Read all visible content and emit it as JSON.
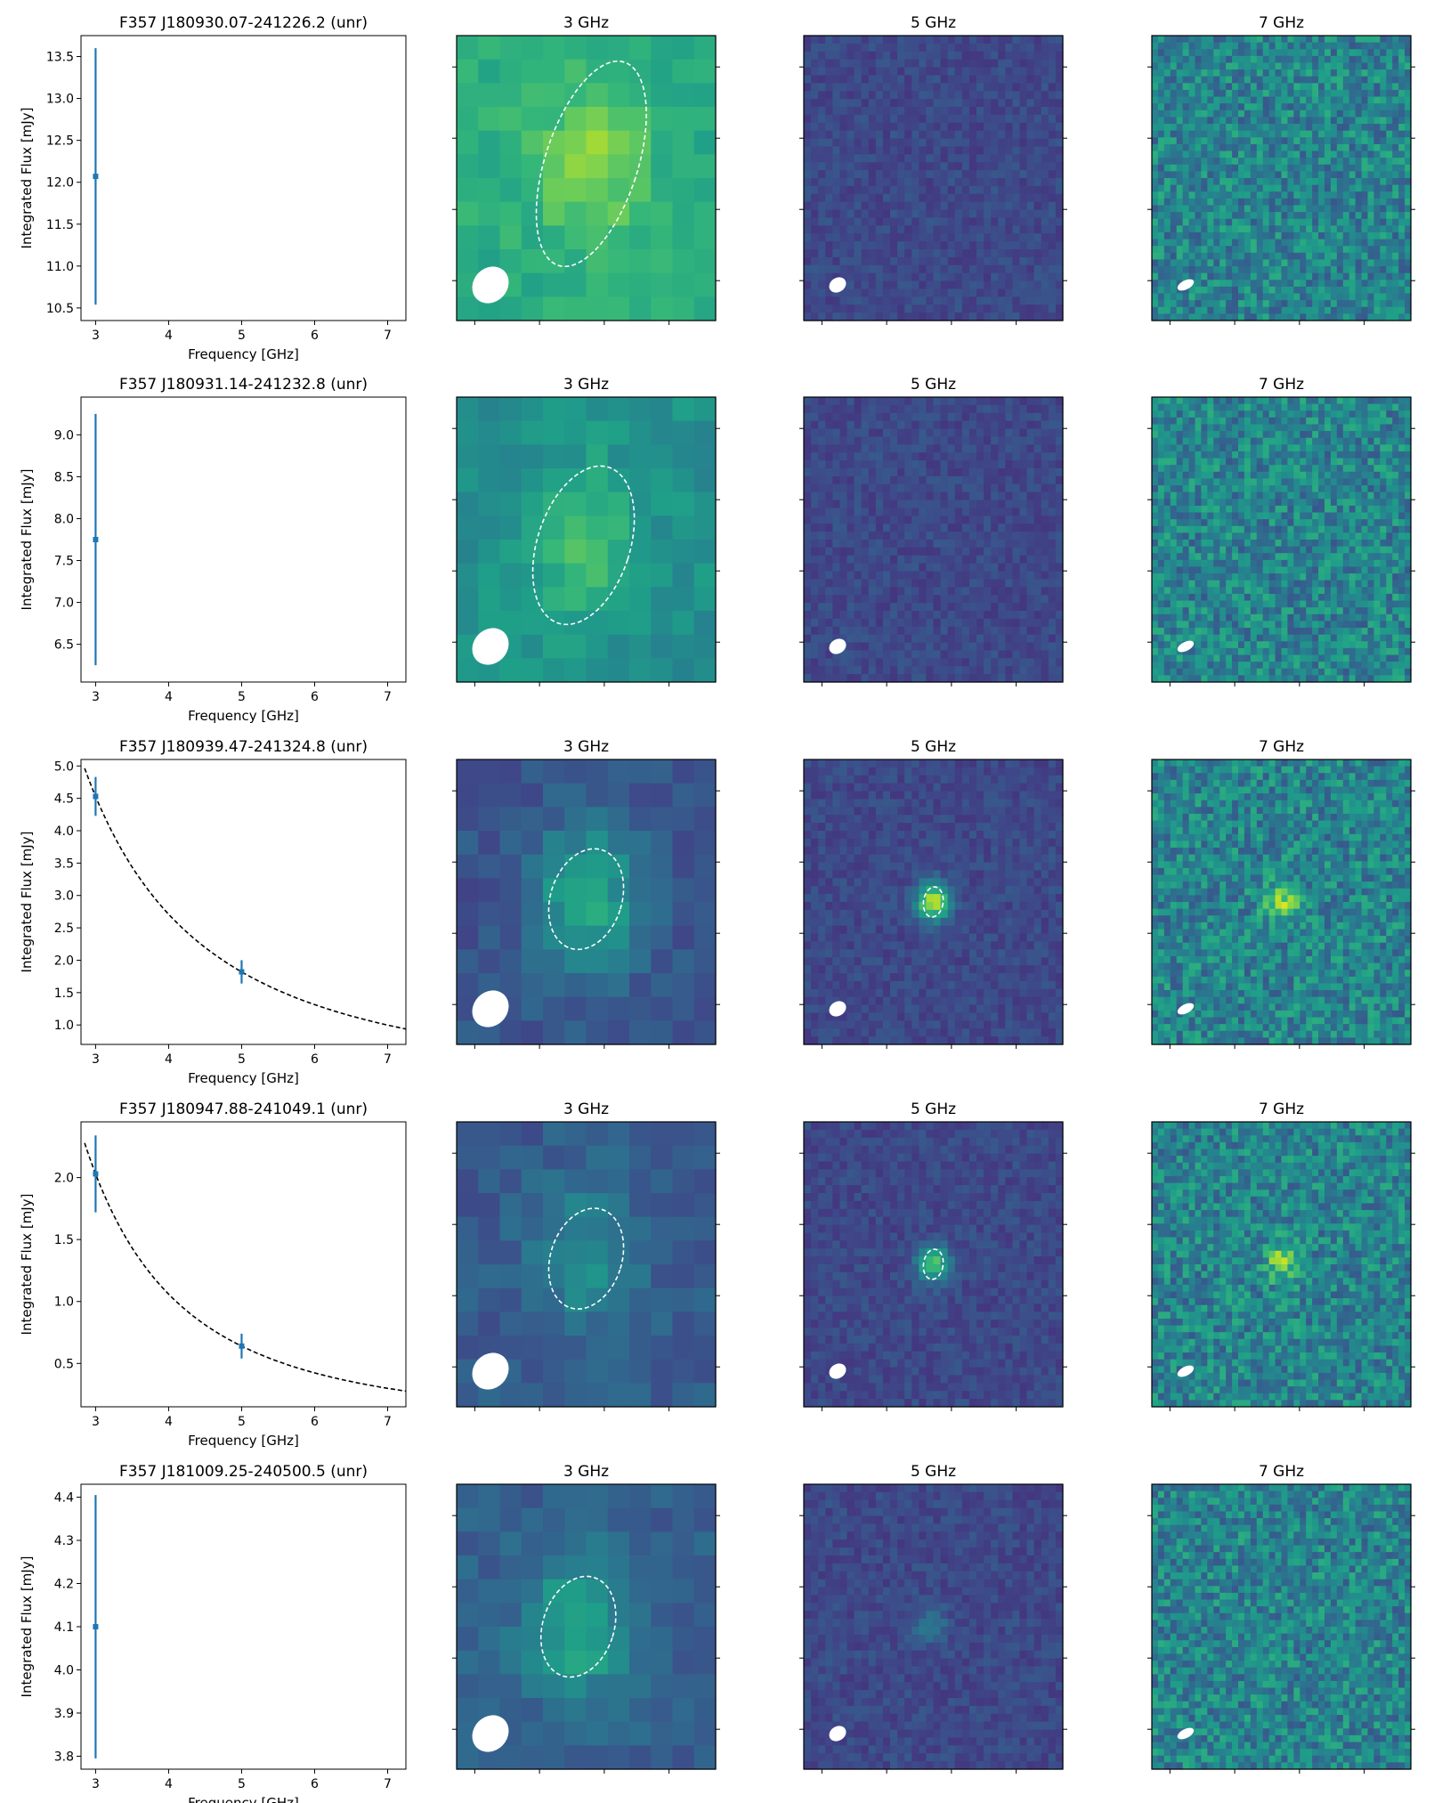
{
  "figure": {
    "band_titles": [
      "3 GHz",
      "5 GHz",
      "7 GHz"
    ],
    "colors": {
      "errorbar": "#1f77b4",
      "fit_line": "#000000",
      "ellipse": "#ffffff",
      "colormap": "viridis"
    }
  },
  "chart_data": [
    {
      "type": "scatter",
      "title": "F357 J180930.07-241226.2 (unr)",
      "xlabel": "Frequency [GHz]",
      "ylabel": "Integrated Flux [mJy]",
      "xlim": [
        2.8,
        7.25
      ],
      "ylim": [
        10.35,
        13.75
      ],
      "xticks": [
        3,
        4,
        5,
        6,
        7
      ],
      "yticks": [
        "10.5",
        "11.0",
        "11.5",
        "12.0",
        "12.5",
        "13.0",
        "13.5"
      ],
      "points": [
        {
          "x": 3,
          "y": 12.07,
          "err": 1.53
        }
      ],
      "fit": null,
      "images": [
        {
          "band": "3 GHz",
          "level": 0.62,
          "pixels": 12,
          "source_peak": 0.82,
          "source_pos": [
            0.52,
            0.45
          ],
          "beam": "large"
        },
        {
          "band": "5 GHz",
          "level": 0.22,
          "pixels": 36,
          "source_peak": null,
          "source_pos": null,
          "beam": "medium"
        },
        {
          "band": "7 GHz",
          "level": 0.45,
          "pixels": 42,
          "source_peak": null,
          "source_pos": null,
          "beam": "small"
        }
      ]
    },
    {
      "type": "scatter",
      "title": "F357 J180931.14-241232.8 (unr)",
      "xlabel": "Frequency [GHz]",
      "ylabel": "Integrated Flux [mJy]",
      "xlim": [
        2.8,
        7.25
      ],
      "ylim": [
        6.05,
        9.45
      ],
      "xticks": [
        3,
        4,
        5,
        6,
        7
      ],
      "yticks": [
        "6.5",
        "7.0",
        "7.5",
        "8.0",
        "8.5",
        "9.0"
      ],
      "points": [
        {
          "x": 3,
          "y": 7.75,
          "err": 1.5
        }
      ],
      "fit": null,
      "images": [
        {
          "band": "3 GHz",
          "level": 0.5,
          "pixels": 12,
          "source_peak": 0.72,
          "source_pos": [
            0.49,
            0.52
          ],
          "beam": "large"
        },
        {
          "band": "5 GHz",
          "level": 0.22,
          "pixels": 36,
          "source_peak": null,
          "source_pos": null,
          "beam": "medium"
        },
        {
          "band": "7 GHz",
          "level": 0.45,
          "pixels": 42,
          "source_peak": null,
          "source_pos": null,
          "beam": "small"
        }
      ]
    },
    {
      "type": "scatter",
      "title": "F357 J180939.47-241324.8 (unr)",
      "xlabel": "Frequency [GHz]",
      "ylabel": "Integrated Flux [mJy]",
      "xlim": [
        2.8,
        7.25
      ],
      "ylim": [
        0.7,
        5.1
      ],
      "xticks": [
        3,
        4,
        5,
        6,
        7
      ],
      "yticks": [
        "1.0",
        "1.5",
        "2.0",
        "2.5",
        "3.0",
        "3.5",
        "4.0",
        "4.5",
        "5.0"
      ],
      "points": [
        {
          "x": 3,
          "y": 4.53,
          "err": 0.3
        },
        {
          "x": 5,
          "y": 1.82,
          "err": 0.18
        }
      ],
      "fit": {
        "k": 4.53,
        "alpha": -1.785
      },
      "images": [
        {
          "band": "3 GHz",
          "level": 0.26,
          "pixels": 12,
          "source_peak": 0.62,
          "source_pos": [
            0.5,
            0.49
          ],
          "beam": "large"
        },
        {
          "band": "5 GHz",
          "level": 0.22,
          "pixels": 36,
          "source_peak": 0.9,
          "source_pos": [
            0.5,
            0.5
          ],
          "beam": "medium"
        },
        {
          "band": "7 GHz",
          "level": 0.45,
          "pixels": 42,
          "source_peak": 0.85,
          "source_pos": [
            0.5,
            0.5
          ],
          "beam": "small"
        }
      ]
    },
    {
      "type": "scatter",
      "title": "F357 J180947.88-241049.1 (unr)",
      "xlabel": "Frequency [GHz]",
      "ylabel": "Integrated Flux [mJy]",
      "xlim": [
        2.8,
        7.25
      ],
      "ylim": [
        0.15,
        2.45
      ],
      "xticks": [
        3,
        4,
        5,
        6,
        7
      ],
      "yticks": [
        "0.5",
        "1.0",
        "1.5",
        "2.0"
      ],
      "points": [
        {
          "x": 3,
          "y": 2.03,
          "err": 0.31
        },
        {
          "x": 5,
          "y": 0.64,
          "err": 0.1
        }
      ],
      "fit": {
        "k": 2.03,
        "alpha": -2.26
      },
      "images": [
        {
          "band": "3 GHz",
          "level": 0.28,
          "pixels": 12,
          "source_peak": 0.5,
          "source_pos": [
            0.5,
            0.48
          ],
          "beam": "large"
        },
        {
          "band": "5 GHz",
          "level": 0.22,
          "pixels": 36,
          "source_peak": 0.72,
          "source_pos": [
            0.5,
            0.5
          ],
          "beam": "medium"
        },
        {
          "band": "7 GHz",
          "level": 0.45,
          "pixels": 42,
          "source_peak": 0.82,
          "source_pos": [
            0.5,
            0.49
          ],
          "beam": "small"
        }
      ]
    },
    {
      "type": "scatter",
      "title": "F357 J181009.25-240500.5 (unr)",
      "xlabel": "Frequency [GHz]",
      "ylabel": "Integrated Flux [mJy]",
      "xlim": [
        2.8,
        7.25
      ],
      "ylim": [
        3.77,
        4.43
      ],
      "xticks": [
        3,
        4,
        5,
        6,
        7
      ],
      "yticks": [
        "3.8",
        "3.9",
        "4.0",
        "4.1",
        "4.2",
        "4.3",
        "4.4"
      ],
      "points": [
        {
          "x": 3,
          "y": 4.1,
          "err": 0.305
        }
      ],
      "fit": null,
      "images": [
        {
          "band": "3 GHz",
          "level": 0.3,
          "pixels": 12,
          "source_peak": 0.62,
          "source_pos": [
            0.47,
            0.5
          ],
          "beam": "large"
        },
        {
          "band": "5 GHz",
          "level": 0.22,
          "pixels": 36,
          "source_peak": 0.4,
          "source_pos": [
            0.49,
            0.5
          ],
          "beam": "medium"
        },
        {
          "band": "7 GHz",
          "level": 0.45,
          "pixels": 42,
          "source_peak": null,
          "source_pos": null,
          "beam": "small"
        }
      ]
    }
  ]
}
